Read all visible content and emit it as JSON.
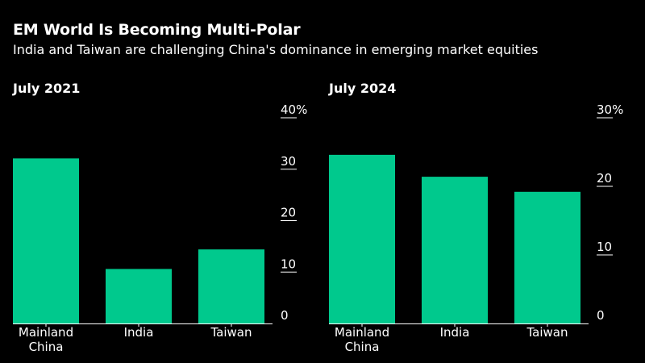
{
  "header": {
    "title": "EM World Is Becoming Multi-Polar",
    "subtitle": "India and Taiwan are challenging China's dominance in emerging market equities"
  },
  "colors": {
    "bar": "#00c98d",
    "axis": "#ffffff",
    "background": "#000000",
    "text": "#ffffff"
  },
  "chart_data": [
    {
      "type": "bar",
      "title": "July 2021",
      "categories": [
        "Mainland China",
        "India",
        "Taiwan"
      ],
      "category_lines": [
        [
          "Mainland",
          "China"
        ],
        [
          "India"
        ],
        [
          "Taiwan"
        ]
      ],
      "values": [
        32.1,
        10.6,
        14.4
      ],
      "ylim": [
        0,
        40
      ],
      "yticks": [
        0,
        10,
        20,
        30,
        40
      ],
      "ytick_labels": [
        "0",
        "10",
        "20",
        "30",
        "40%"
      ],
      "xlabel": "",
      "ylabel": ""
    },
    {
      "type": "bar",
      "title": "July 2024",
      "categories": [
        "Mainland China",
        "India",
        "Taiwan"
      ],
      "category_lines": [
        [
          "Mainland",
          "China"
        ],
        [
          "India"
        ],
        [
          "Taiwan"
        ]
      ],
      "values": [
        24.6,
        21.4,
        19.2
      ],
      "ylim": [
        0,
        30
      ],
      "yticks": [
        0,
        10,
        20,
        30
      ],
      "ytick_labels": [
        "0",
        "10",
        "20",
        "30%"
      ],
      "xlabel": "",
      "ylabel": ""
    }
  ]
}
